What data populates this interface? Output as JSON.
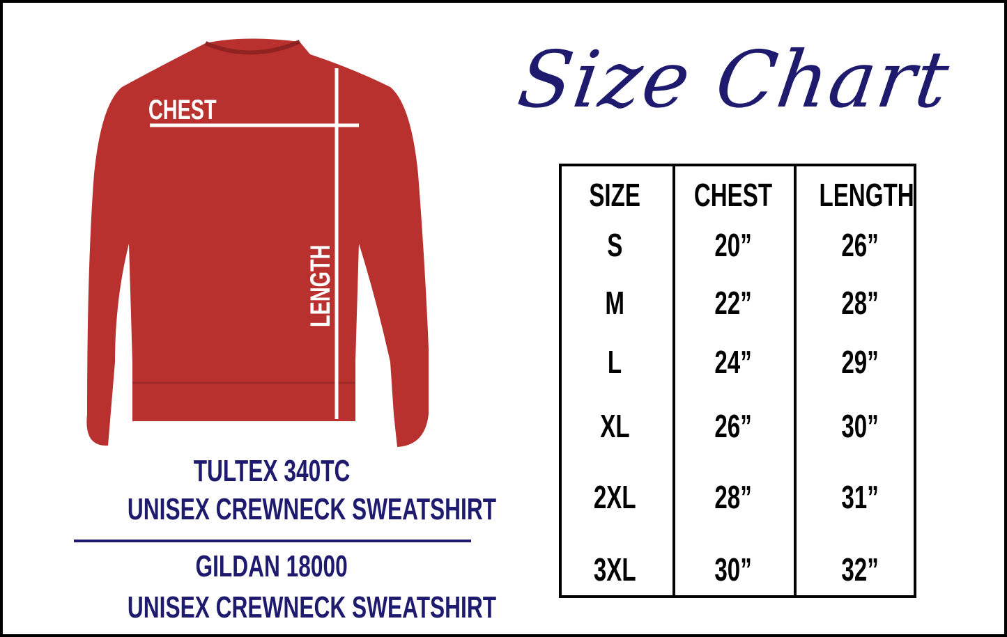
{
  "title": "Size Chart",
  "shirt": {
    "color": "#b8312f",
    "chest_label": "CHEST",
    "length_label": "LENGTH"
  },
  "products": [
    {
      "brand": "TULTEX 340TC",
      "name": "UNISEX CREWNECK SWEATSHIRT"
    },
    {
      "brand": "GILDAN 18000",
      "name": "UNISEX CREWNECK SWEATSHIRT"
    }
  ],
  "accent_color": "#1e1a6e",
  "table": {
    "headers": [
      "SIZE",
      "CHEST",
      "LENGTH"
    ],
    "rows": [
      [
        "S",
        "20”",
        "26”"
      ],
      [
        "M",
        "22”",
        "28”"
      ],
      [
        "L",
        "24”",
        "29”"
      ],
      [
        "XL",
        "26”",
        "30”"
      ],
      [
        "2XL",
        "28”",
        "31”"
      ],
      [
        "3XL",
        "30”",
        "32”"
      ]
    ]
  }
}
